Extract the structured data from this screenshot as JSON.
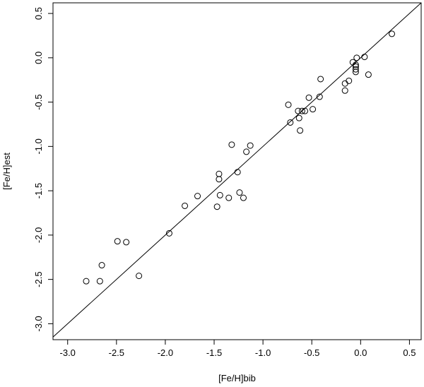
{
  "chart_data": {
    "type": "scatter",
    "title": "",
    "xlabel": "[Fe/H]bib",
    "ylabel": "[Fe/H]est",
    "xlim": [
      -3.15,
      0.62
    ],
    "ylim": [
      -3.18,
      0.62
    ],
    "x_ticks": [
      -3.0,
      -2.5,
      -2.0,
      -1.5,
      -1.0,
      -0.5,
      0.0,
      0.5
    ],
    "x_tick_labels": [
      "-3.0",
      "-2.5",
      "-2.0",
      "-1.5",
      "-1.0",
      "-0.5",
      "0.0",
      "0.5"
    ],
    "y_ticks": [
      -3.0,
      -2.5,
      -2.0,
      -1.5,
      -1.0,
      -0.5,
      0.0,
      0.5
    ],
    "y_tick_labels": [
      "-3.0",
      "-2.5",
      "-2.0",
      "-1.5",
      "-1.0",
      "-0.5",
      "0.0",
      "0.5"
    ],
    "grid": false,
    "legend": "none",
    "reference_line": {
      "slope": 1,
      "intercept": 0
    },
    "points": [
      {
        "x": -2.81,
        "y": -2.52
      },
      {
        "x": -2.67,
        "y": -2.52
      },
      {
        "x": -2.65,
        "y": -2.34
      },
      {
        "x": -2.49,
        "y": -2.07
      },
      {
        "x": -2.4,
        "y": -2.08
      },
      {
        "x": -2.27,
        "y": -2.46
      },
      {
        "x": -1.96,
        "y": -1.98
      },
      {
        "x": -1.8,
        "y": -1.67
      },
      {
        "x": -1.67,
        "y": -1.56
      },
      {
        "x": -1.47,
        "y": -1.68
      },
      {
        "x": -1.45,
        "y": -1.31
      },
      {
        "x": -1.45,
        "y": -1.37
      },
      {
        "x": -1.44,
        "y": -1.55
      },
      {
        "x": -1.35,
        "y": -1.58
      },
      {
        "x": -1.32,
        "y": -0.98
      },
      {
        "x": -1.26,
        "y": -1.29
      },
      {
        "x": -1.24,
        "y": -1.52
      },
      {
        "x": -1.2,
        "y": -1.58
      },
      {
        "x": -1.17,
        "y": -1.06
      },
      {
        "x": -1.13,
        "y": -0.99
      },
      {
        "x": -0.74,
        "y": -0.53
      },
      {
        "x": -0.72,
        "y": -0.73
      },
      {
        "x": -0.64,
        "y": -0.6
      },
      {
        "x": -0.63,
        "y": -0.68
      },
      {
        "x": -0.62,
        "y": -0.82
      },
      {
        "x": -0.6,
        "y": -0.6
      },
      {
        "x": -0.57,
        "y": -0.6
      },
      {
        "x": -0.53,
        "y": -0.45
      },
      {
        "x": -0.49,
        "y": -0.58
      },
      {
        "x": -0.42,
        "y": -0.44
      },
      {
        "x": -0.41,
        "y": -0.24
      },
      {
        "x": -0.16,
        "y": -0.29
      },
      {
        "x": -0.16,
        "y": -0.37
      },
      {
        "x": -0.12,
        "y": -0.26
      },
      {
        "x": -0.08,
        "y": -0.05
      },
      {
        "x": -0.05,
        "y": -0.08
      },
      {
        "x": -0.05,
        "y": -0.1
      },
      {
        "x": -0.05,
        "y": -0.13
      },
      {
        "x": -0.05,
        "y": -0.16
      },
      {
        "x": -0.04,
        "y": 0.0
      },
      {
        "x": 0.04,
        "y": 0.01
      },
      {
        "x": 0.08,
        "y": -0.19
      },
      {
        "x": 0.32,
        "y": 0.27
      }
    ]
  }
}
